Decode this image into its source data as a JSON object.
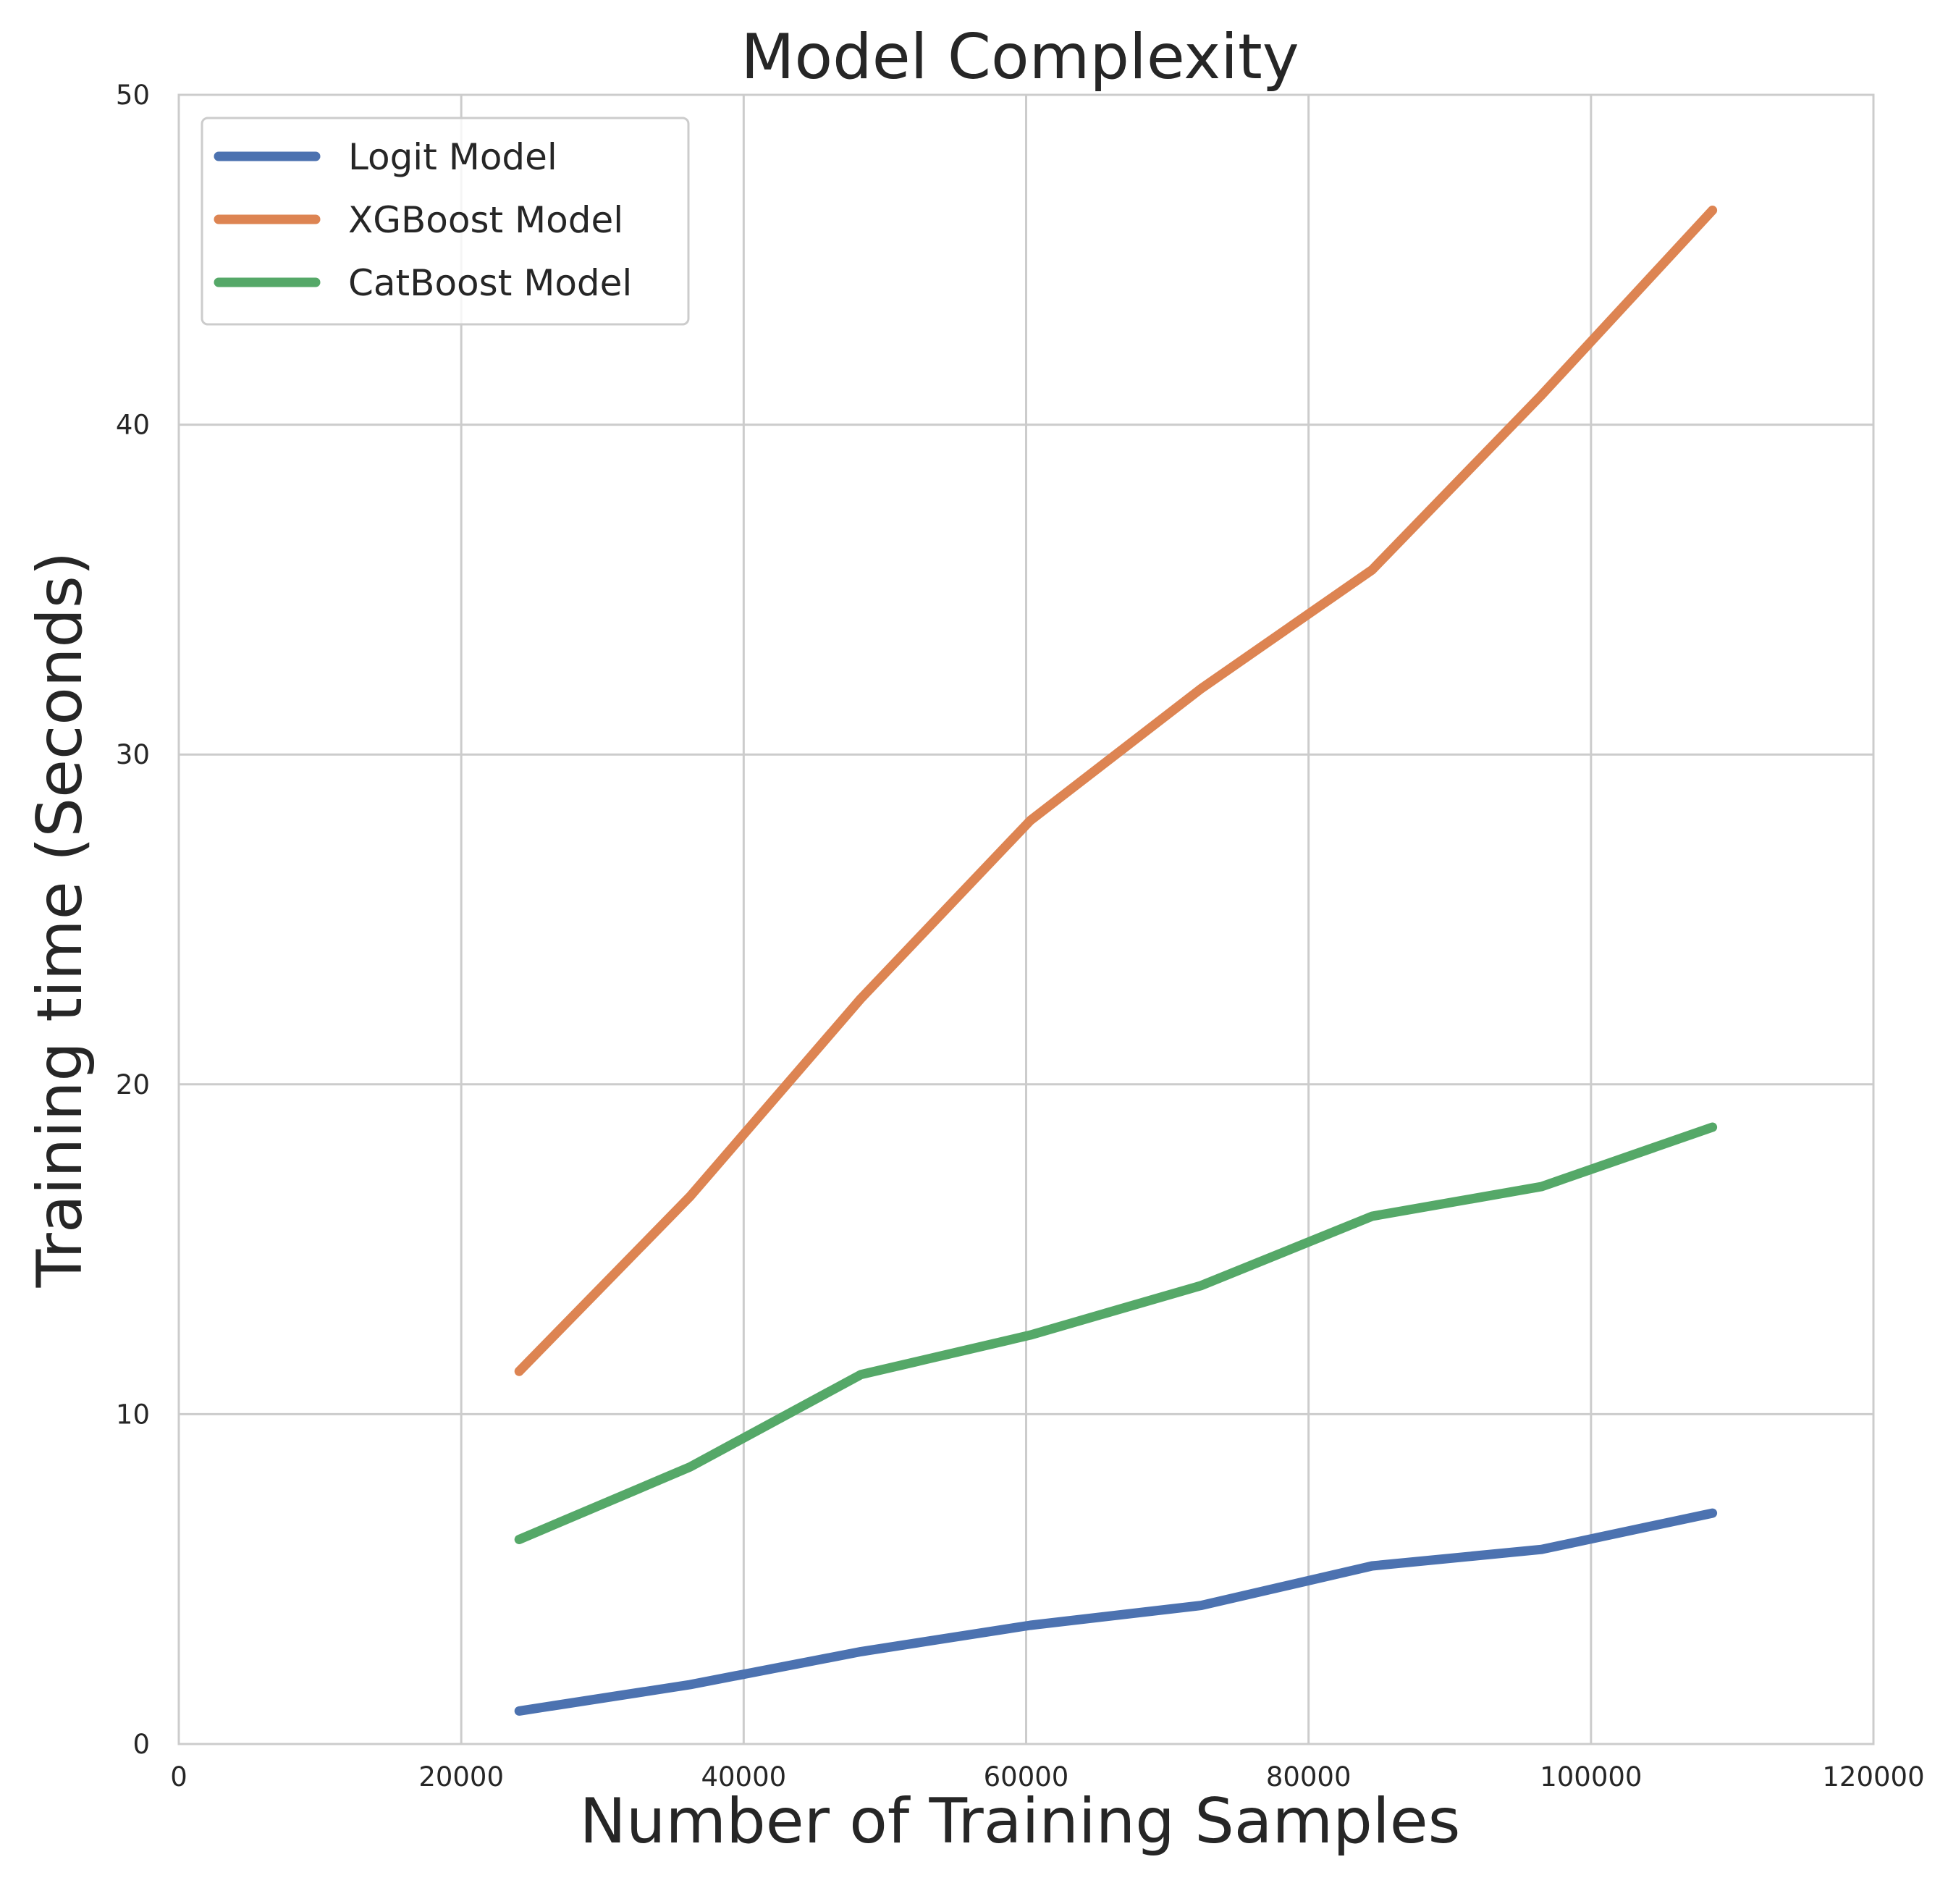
{
  "chart_data": {
    "type": "line",
    "title": "Model Complexity",
    "xlabel": "Number of Training Samples",
    "ylabel": "Training time (Seconds)",
    "xlim": [
      0,
      120000
    ],
    "ylim": [
      0,
      50
    ],
    "xticks": [
      0,
      20000,
      40000,
      60000,
      80000,
      100000,
      120000
    ],
    "yticks": [
      0,
      10,
      20,
      30,
      40,
      50
    ],
    "grid": true,
    "legend_position": "top-left",
    "x": [
      24100,
      36200,
      48300,
      60300,
      72400,
      84500,
      96500,
      108600
    ],
    "series": [
      {
        "name": "Logit Model",
        "color": "#4c72b0",
        "values": [
          1.0,
          1.8,
          2.8,
          3.6,
          4.2,
          5.4,
          5.9,
          7.0
        ]
      },
      {
        "name": "XGBoost Model",
        "color": "#dd8452",
        "values": [
          11.3,
          16.6,
          22.6,
          28.0,
          32.0,
          35.6,
          40.9,
          46.5
        ]
      },
      {
        "name": "CatBoost Model",
        "color": "#55a868",
        "values": [
          6.2,
          8.4,
          11.2,
          12.4,
          13.9,
          16.0,
          16.9,
          18.7
        ]
      }
    ]
  }
}
